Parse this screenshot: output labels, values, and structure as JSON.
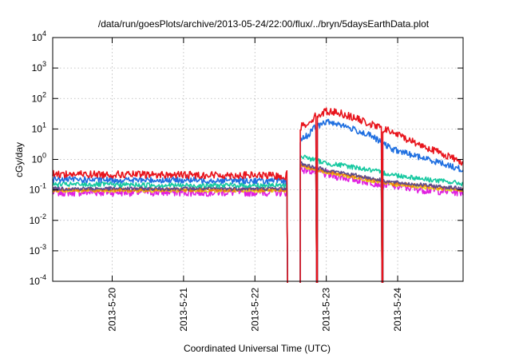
{
  "chart_data": {
    "type": "line",
    "title": "/data/run/goesPlots/archive/2013-05-24/22:00/flux/../bryn/5daysEarthData.plot",
    "xlabel": "Coordinated Universal Time (UTC)",
    "ylabel": "cGy/day",
    "y_scale": "log",
    "ylim": [
      0.0001,
      10000
    ],
    "xlim": [
      "2013-05-19T04:00",
      "2013-05-24T22:00"
    ],
    "grid": true,
    "y_ticks": [
      {
        "value": 0.0001,
        "base": "10",
        "exp": "-4"
      },
      {
        "value": 0.001,
        "base": "10",
        "exp": "-3"
      },
      {
        "value": 0.01,
        "base": "10",
        "exp": "-2"
      },
      {
        "value": 0.1,
        "base": "10",
        "exp": "-1"
      },
      {
        "value": 1,
        "base": "10",
        "exp": "0"
      },
      {
        "value": 10,
        "base": "10",
        "exp": "1"
      },
      {
        "value": 100,
        "base": "10",
        "exp": "2"
      },
      {
        "value": 1000,
        "base": "10",
        "exp": "3"
      },
      {
        "value": 10000,
        "base": "10",
        "exp": "4"
      }
    ],
    "x_ticks": [
      {
        "value": "2013-05-20T00:00",
        "label": "2013-5-20"
      },
      {
        "value": "2013-05-21T00:00",
        "label": "2013-5-21"
      },
      {
        "value": "2013-05-22T00:00",
        "label": "2013-5-22"
      },
      {
        "value": "2013-05-23T00:00",
        "label": "2013-5-23"
      },
      {
        "value": "2013-05-24T00:00",
        "label": "2013-5-24"
      }
    ],
    "series": [
      {
        "color": "#e8141c",
        "x": [
          "2013-05-19T04:00",
          "2013-05-20T00:00",
          "2013-05-21T00:00",
          "2013-05-22T00:00",
          "2013-05-22T10:30",
          "2013-05-22T15:30",
          "2013-05-22T18:00",
          "2013-05-22T20:00",
          "2013-05-23T00:00",
          "2013-05-23T04:00",
          "2013-05-23T10:00",
          "2013-05-23T15:00",
          "2013-05-23T22:00",
          "2013-05-24T06:00",
          "2013-05-24T14:00",
          "2013-05-24T22:00"
        ],
        "y": [
          0.33,
          0.32,
          0.31,
          0.3,
          0.28,
          12,
          16,
          25,
          38,
          35,
          22,
          14,
          8,
          3.5,
          1.7,
          0.8
        ]
      },
      {
        "color": "#1f6fe0",
        "x": [
          "2013-05-19T04:00",
          "2013-05-20T00:00",
          "2013-05-21T00:00",
          "2013-05-22T00:00",
          "2013-05-22T10:30",
          "2013-05-22T15:30",
          "2013-05-22T18:00",
          "2013-05-22T20:00",
          "2013-05-23T00:00",
          "2013-05-23T04:00",
          "2013-05-23T10:00",
          "2013-05-23T15:00",
          "2013-05-23T22:00",
          "2013-05-24T06:00",
          "2013-05-24T14:00",
          "2013-05-24T22:00"
        ],
        "y": [
          0.22,
          0.21,
          0.21,
          0.2,
          0.19,
          4.5,
          6.5,
          11,
          17,
          15,
          9,
          6,
          2.2,
          1.3,
          0.8,
          0.45
        ]
      },
      {
        "color": "#16c8a0",
        "x": [
          "2013-05-19T04:00",
          "2013-05-20T00:00",
          "2013-05-21T00:00",
          "2013-05-22T00:00",
          "2013-05-22T10:30",
          "2013-05-22T15:30",
          "2013-05-22T18:00",
          "2013-05-23T00:00",
          "2013-05-23T10:00",
          "2013-05-23T22:00",
          "2013-05-24T10:00",
          "2013-05-24T22:00"
        ],
        "y": [
          0.15,
          0.15,
          0.14,
          0.14,
          0.14,
          1.3,
          1.1,
          0.75,
          0.55,
          0.32,
          0.22,
          0.16
        ]
      },
      {
        "color": "#5e4a8a",
        "x": [
          "2013-05-19T04:00",
          "2013-05-20T00:00",
          "2013-05-21T00:00",
          "2013-05-22T00:00",
          "2013-05-22T10:30",
          "2013-05-22T15:30",
          "2013-05-22T18:00",
          "2013-05-23T00:00",
          "2013-05-23T10:00",
          "2013-05-23T22:00",
          "2013-05-24T10:00",
          "2013-05-24T22:00"
        ],
        "y": [
          0.11,
          0.11,
          0.11,
          0.11,
          0.11,
          0.75,
          0.62,
          0.45,
          0.3,
          0.18,
          0.14,
          0.11
        ]
      },
      {
        "color": "#ee7a10",
        "x": [
          "2013-05-19T04:00",
          "2013-05-20T00:00",
          "2013-05-21T00:00",
          "2013-05-22T00:00",
          "2013-05-22T10:30",
          "2013-05-22T15:30",
          "2013-05-22T18:00",
          "2013-05-23T00:00",
          "2013-05-23T10:00",
          "2013-05-23T22:00",
          "2013-05-24T10:00",
          "2013-05-24T22:00"
        ],
        "y": [
          0.1,
          0.1,
          0.1,
          0.1,
          0.1,
          0.65,
          0.55,
          0.4,
          0.27,
          0.16,
          0.13,
          0.1
        ]
      },
      {
        "color": "#e7d21a",
        "x": [
          "2013-05-19T04:00",
          "2013-05-20T00:00",
          "2013-05-21T00:00",
          "2013-05-22T00:00",
          "2013-05-22T10:30",
          "2013-05-22T15:30",
          "2013-05-22T18:00",
          "2013-05-23T00:00",
          "2013-05-23T10:00",
          "2013-05-23T22:00",
          "2013-05-24T10:00",
          "2013-05-24T22:00"
        ],
        "y": [
          0.095,
          0.095,
          0.095,
          0.095,
          0.095,
          0.6,
          0.5,
          0.37,
          0.25,
          0.15,
          0.12,
          0.095
        ]
      },
      {
        "color": "#e020e0",
        "x": [
          "2013-05-19T04:00",
          "2013-05-20T00:00",
          "2013-05-21T00:00",
          "2013-05-22T00:00",
          "2013-05-22T10:30",
          "2013-05-22T15:30",
          "2013-05-22T18:00",
          "2013-05-23T00:00",
          "2013-05-23T10:00",
          "2013-05-23T22:00",
          "2013-05-24T10:00",
          "2013-05-24T22:00"
        ],
        "y": [
          0.085,
          0.085,
          0.085,
          0.085,
          0.085,
          0.5,
          0.45,
          0.33,
          0.22,
          0.14,
          0.1,
          0.085
        ]
      }
    ],
    "gaps": [
      {
        "from": "2013-05-22T10:45",
        "to": "2013-05-22T15:15"
      },
      {
        "from": "2013-05-22T20:30",
        "to": "2013-05-22T21:00"
      },
      {
        "from": "2013-05-23T18:40",
        "to": "2013-05-23T19:00"
      }
    ]
  }
}
